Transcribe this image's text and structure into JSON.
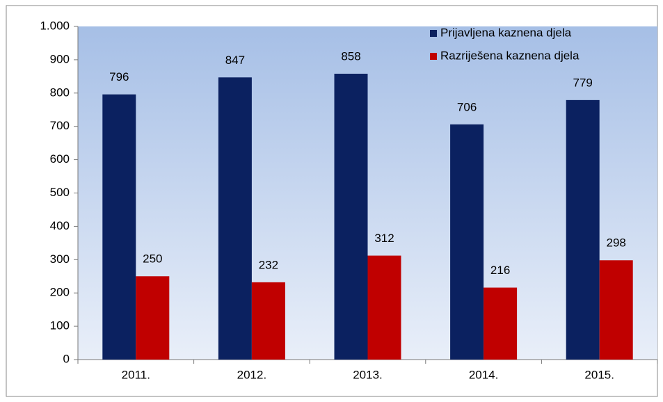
{
  "chart_data": {
    "type": "bar",
    "categories": [
      "2011.",
      "2012.",
      "2013.",
      "2014.",
      "2015."
    ],
    "series": [
      {
        "name": "Prijavljena kaznena djela",
        "color": "#0b2160",
        "values": [
          796,
          847,
          858,
          706,
          779
        ]
      },
      {
        "name": "Razriješena kaznena djela",
        "color": "#c00000",
        "values": [
          250,
          232,
          312,
          216,
          298
        ]
      }
    ],
    "ylim": [
      0,
      1000
    ],
    "yticks": [
      0,
      100,
      200,
      300,
      400,
      500,
      600,
      700,
      800,
      900,
      {
        "value": 1000,
        "label": "1.000"
      }
    ],
    "legend": "top-right"
  }
}
